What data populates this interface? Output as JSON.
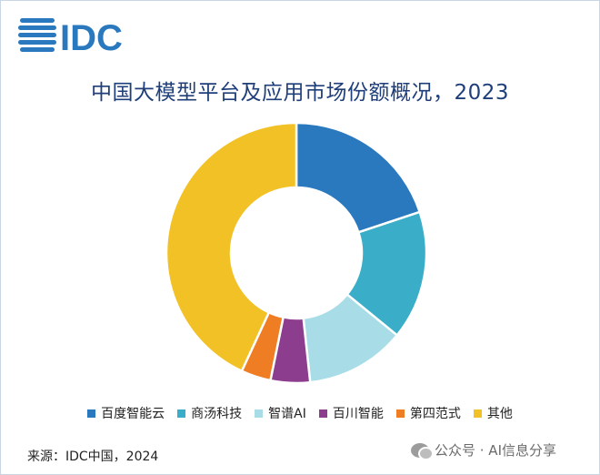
{
  "logo": {
    "text": "IDC"
  },
  "chart_data": {
    "type": "pie",
    "title": "中国大模型平台及应用市场份额概况，2023",
    "categories": [
      "百度智能云",
      "商汤科技",
      "智谱AI",
      "百川智能",
      "第四范式",
      "其他"
    ],
    "values": [
      19.9,
      16.0,
      12.4,
      4.9,
      3.7,
      43.1
    ],
    "colors": [
      "#2a79be",
      "#3aaec8",
      "#a8dde8",
      "#8c3d8e",
      "#ee7d24",
      "#f1c125"
    ],
    "legend_position": "bottom",
    "donut": true
  },
  "source": "来源：IDC中国，2024",
  "watermark": "公众号 · AI信息分享"
}
